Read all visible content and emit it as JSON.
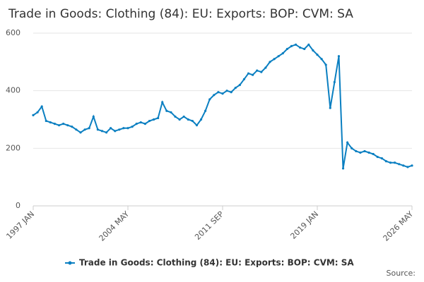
{
  "chart_data": {
    "type": "line",
    "title": "Trade in Goods: Clothing (84): EU: Exports: BOP: CVM: SA",
    "source_label": "Source:",
    "categories": [
      "1997 JAN",
      null,
      null,
      null,
      null,
      null,
      null,
      null,
      null,
      null,
      null,
      null,
      null,
      null,
      null,
      null,
      null,
      null,
      null,
      null,
      null,
      null,
      "2004 MAY",
      null,
      null,
      null,
      null,
      null,
      null,
      null,
      null,
      null,
      null,
      null,
      null,
      null,
      null,
      null,
      null,
      null,
      null,
      null,
      null,
      null,
      "2011 SEP",
      null,
      null,
      null,
      null,
      null,
      null,
      null,
      null,
      null,
      null,
      null,
      null,
      null,
      null,
      null,
      null,
      null,
      null,
      null,
      null,
      null,
      "2019 JAN",
      null,
      null,
      null,
      null,
      null,
      null,
      null,
      null,
      null,
      null,
      null,
      null,
      null,
      null,
      null,
      null,
      null,
      null,
      null,
      null,
      null,
      "2026 MAY"
    ],
    "series": [
      {
        "name": "Trade in Goods: Clothing (84): EU: Exports: BOP: CVM: SA",
        "color": "#0a7fc1",
        "values": [
          315,
          325,
          345,
          295,
          290,
          285,
          280,
          285,
          280,
          275,
          265,
          255,
          265,
          270,
          310,
          265,
          260,
          255,
          270,
          260,
          265,
          270,
          270,
          275,
          285,
          290,
          285,
          295,
          300,
          305,
          360,
          330,
          325,
          310,
          300,
          310,
          300,
          295,
          280,
          300,
          330,
          370,
          385,
          395,
          390,
          400,
          395,
          410,
          420,
          440,
          460,
          455,
          470,
          465,
          480,
          500,
          510,
          520,
          530,
          545,
          555,
          560,
          550,
          545,
          560,
          540,
          525,
          510,
          490,
          340,
          430,
          520,
          130,
          220,
          200,
          190,
          185,
          190,
          185,
          180,
          170,
          165,
          155,
          150,
          150,
          145,
          140,
          135,
          140
        ]
      }
    ],
    "ylim": [
      0,
      600
    ],
    "yticks": [
      0,
      200,
      400,
      600
    ],
    "grid": true,
    "legend": "bottom"
  }
}
